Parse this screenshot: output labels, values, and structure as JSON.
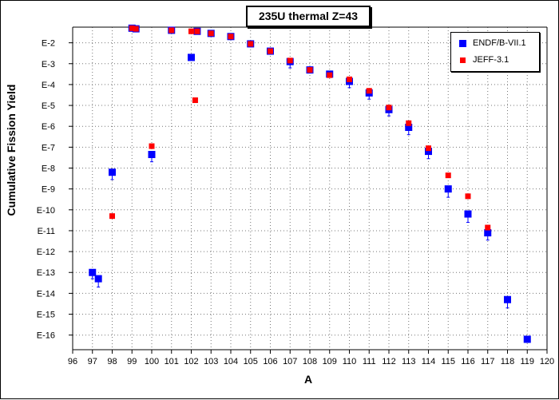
{
  "chart_data": {
    "type": "scatter",
    "title": "235U thermal Z=43",
    "xlabel": "A",
    "ylabel": "Cumulative Fission Yield",
    "xlim": [
      96,
      120
    ],
    "ylim_exp": [
      -16.7,
      -1.25
    ],
    "log_scale": true,
    "grid": true,
    "legend_placement": "top-right",
    "x_ticks": [
      "96",
      "97",
      "98",
      "99",
      "100",
      "101",
      "102",
      "103",
      "104",
      "105",
      "106",
      "107",
      "108",
      "109",
      "110",
      "111",
      "112",
      "113",
      "114",
      "115",
      "116",
      "117",
      "118",
      "119",
      "120"
    ],
    "y_ticks": [
      {
        "label": "E-2",
        "exp": -2
      },
      {
        "label": "E-3",
        "exp": -3
      },
      {
        "label": "E-4",
        "exp": -4
      },
      {
        "label": "E-5",
        "exp": -5
      },
      {
        "label": "E-6",
        "exp": -6
      },
      {
        "label": "E-7",
        "exp": -7
      },
      {
        "label": "E-8",
        "exp": -8
      },
      {
        "label": "E-9",
        "exp": -9
      },
      {
        "label": "E-10",
        "exp": -10
      },
      {
        "label": "E-11",
        "exp": -11
      },
      {
        "label": "E-12",
        "exp": -12
      },
      {
        "label": "E-13",
        "exp": -13
      },
      {
        "label": "E-14",
        "exp": -14
      },
      {
        "label": "E-15",
        "exp": -15
      },
      {
        "label": "E-16",
        "exp": -16
      }
    ],
    "series": [
      {
        "name": "ENDF/B-VII.1",
        "color": "#0000ff",
        "marker": "square",
        "points": [
          {
            "x": 97.0,
            "exp": -13.0,
            "err": 0.3
          },
          {
            "x": 97.3,
            "exp": -13.3,
            "err": 0.4
          },
          {
            "x": 98.0,
            "exp": -8.2,
            "err": 0.35
          },
          {
            "x": 99.0,
            "exp": -1.3
          },
          {
            "x": 99.2,
            "exp": -1.33
          },
          {
            "x": 100.0,
            "exp": -7.35,
            "err": 0.35
          },
          {
            "x": 101.0,
            "exp": -1.4
          },
          {
            "x": 102.0,
            "exp": -2.7
          },
          {
            "x": 102.3,
            "exp": -1.45
          },
          {
            "x": 103.0,
            "exp": -1.55
          },
          {
            "x": 104.0,
            "exp": -1.7
          },
          {
            "x": 105.0,
            "exp": -2.05
          },
          {
            "x": 106.0,
            "exp": -2.4
          },
          {
            "x": 107.0,
            "exp": -2.9,
            "err": 0.3
          },
          {
            "x": 108.0,
            "exp": -3.3
          },
          {
            "x": 109.0,
            "exp": -3.5
          },
          {
            "x": 110.0,
            "exp": -3.85,
            "err": 0.3
          },
          {
            "x": 111.0,
            "exp": -4.4,
            "err": 0.3
          },
          {
            "x": 112.0,
            "exp": -5.2,
            "err": 0.3
          },
          {
            "x": 113.0,
            "exp": -6.05,
            "err": 0.35
          },
          {
            "x": 114.0,
            "exp": -7.2,
            "err": 0.35
          },
          {
            "x": 115.0,
            "exp": -9.0,
            "err": 0.4
          },
          {
            "x": 116.0,
            "exp": -10.2,
            "err": 0.4
          },
          {
            "x": 117.0,
            "exp": -11.1,
            "err": 0.35
          },
          {
            "x": 118.0,
            "exp": -14.3,
            "err": 0.4
          },
          {
            "x": 119.0,
            "exp": -16.2,
            "err": 0.15
          }
        ]
      },
      {
        "name": "JEFF-3.1",
        "color": "#ff0000",
        "marker": "square",
        "points": [
          {
            "x": 98.0,
            "exp": -10.3
          },
          {
            "x": 99.0,
            "exp": -1.3
          },
          {
            "x": 99.2,
            "exp": -1.33
          },
          {
            "x": 100.0,
            "exp": -6.95
          },
          {
            "x": 101.0,
            "exp": -1.4
          },
          {
            "x": 102.0,
            "exp": -1.45
          },
          {
            "x": 102.2,
            "exp": -4.75
          },
          {
            "x": 102.3,
            "exp": -1.45
          },
          {
            "x": 103.0,
            "exp": -1.55
          },
          {
            "x": 104.0,
            "exp": -1.7
          },
          {
            "x": 105.0,
            "exp": -2.05
          },
          {
            "x": 106.0,
            "exp": -2.4
          },
          {
            "x": 107.0,
            "exp": -2.85
          },
          {
            "x": 108.0,
            "exp": -3.3
          },
          {
            "x": 109.0,
            "exp": -3.55
          },
          {
            "x": 110.0,
            "exp": -3.75
          },
          {
            "x": 111.0,
            "exp": -4.3
          },
          {
            "x": 112.0,
            "exp": -5.1
          },
          {
            "x": 113.0,
            "exp": -5.85
          },
          {
            "x": 114.0,
            "exp": -7.05
          },
          {
            "x": 115.0,
            "exp": -8.35
          },
          {
            "x": 116.0,
            "exp": -9.35
          },
          {
            "x": 117.0,
            "exp": -10.85
          }
        ]
      }
    ]
  }
}
